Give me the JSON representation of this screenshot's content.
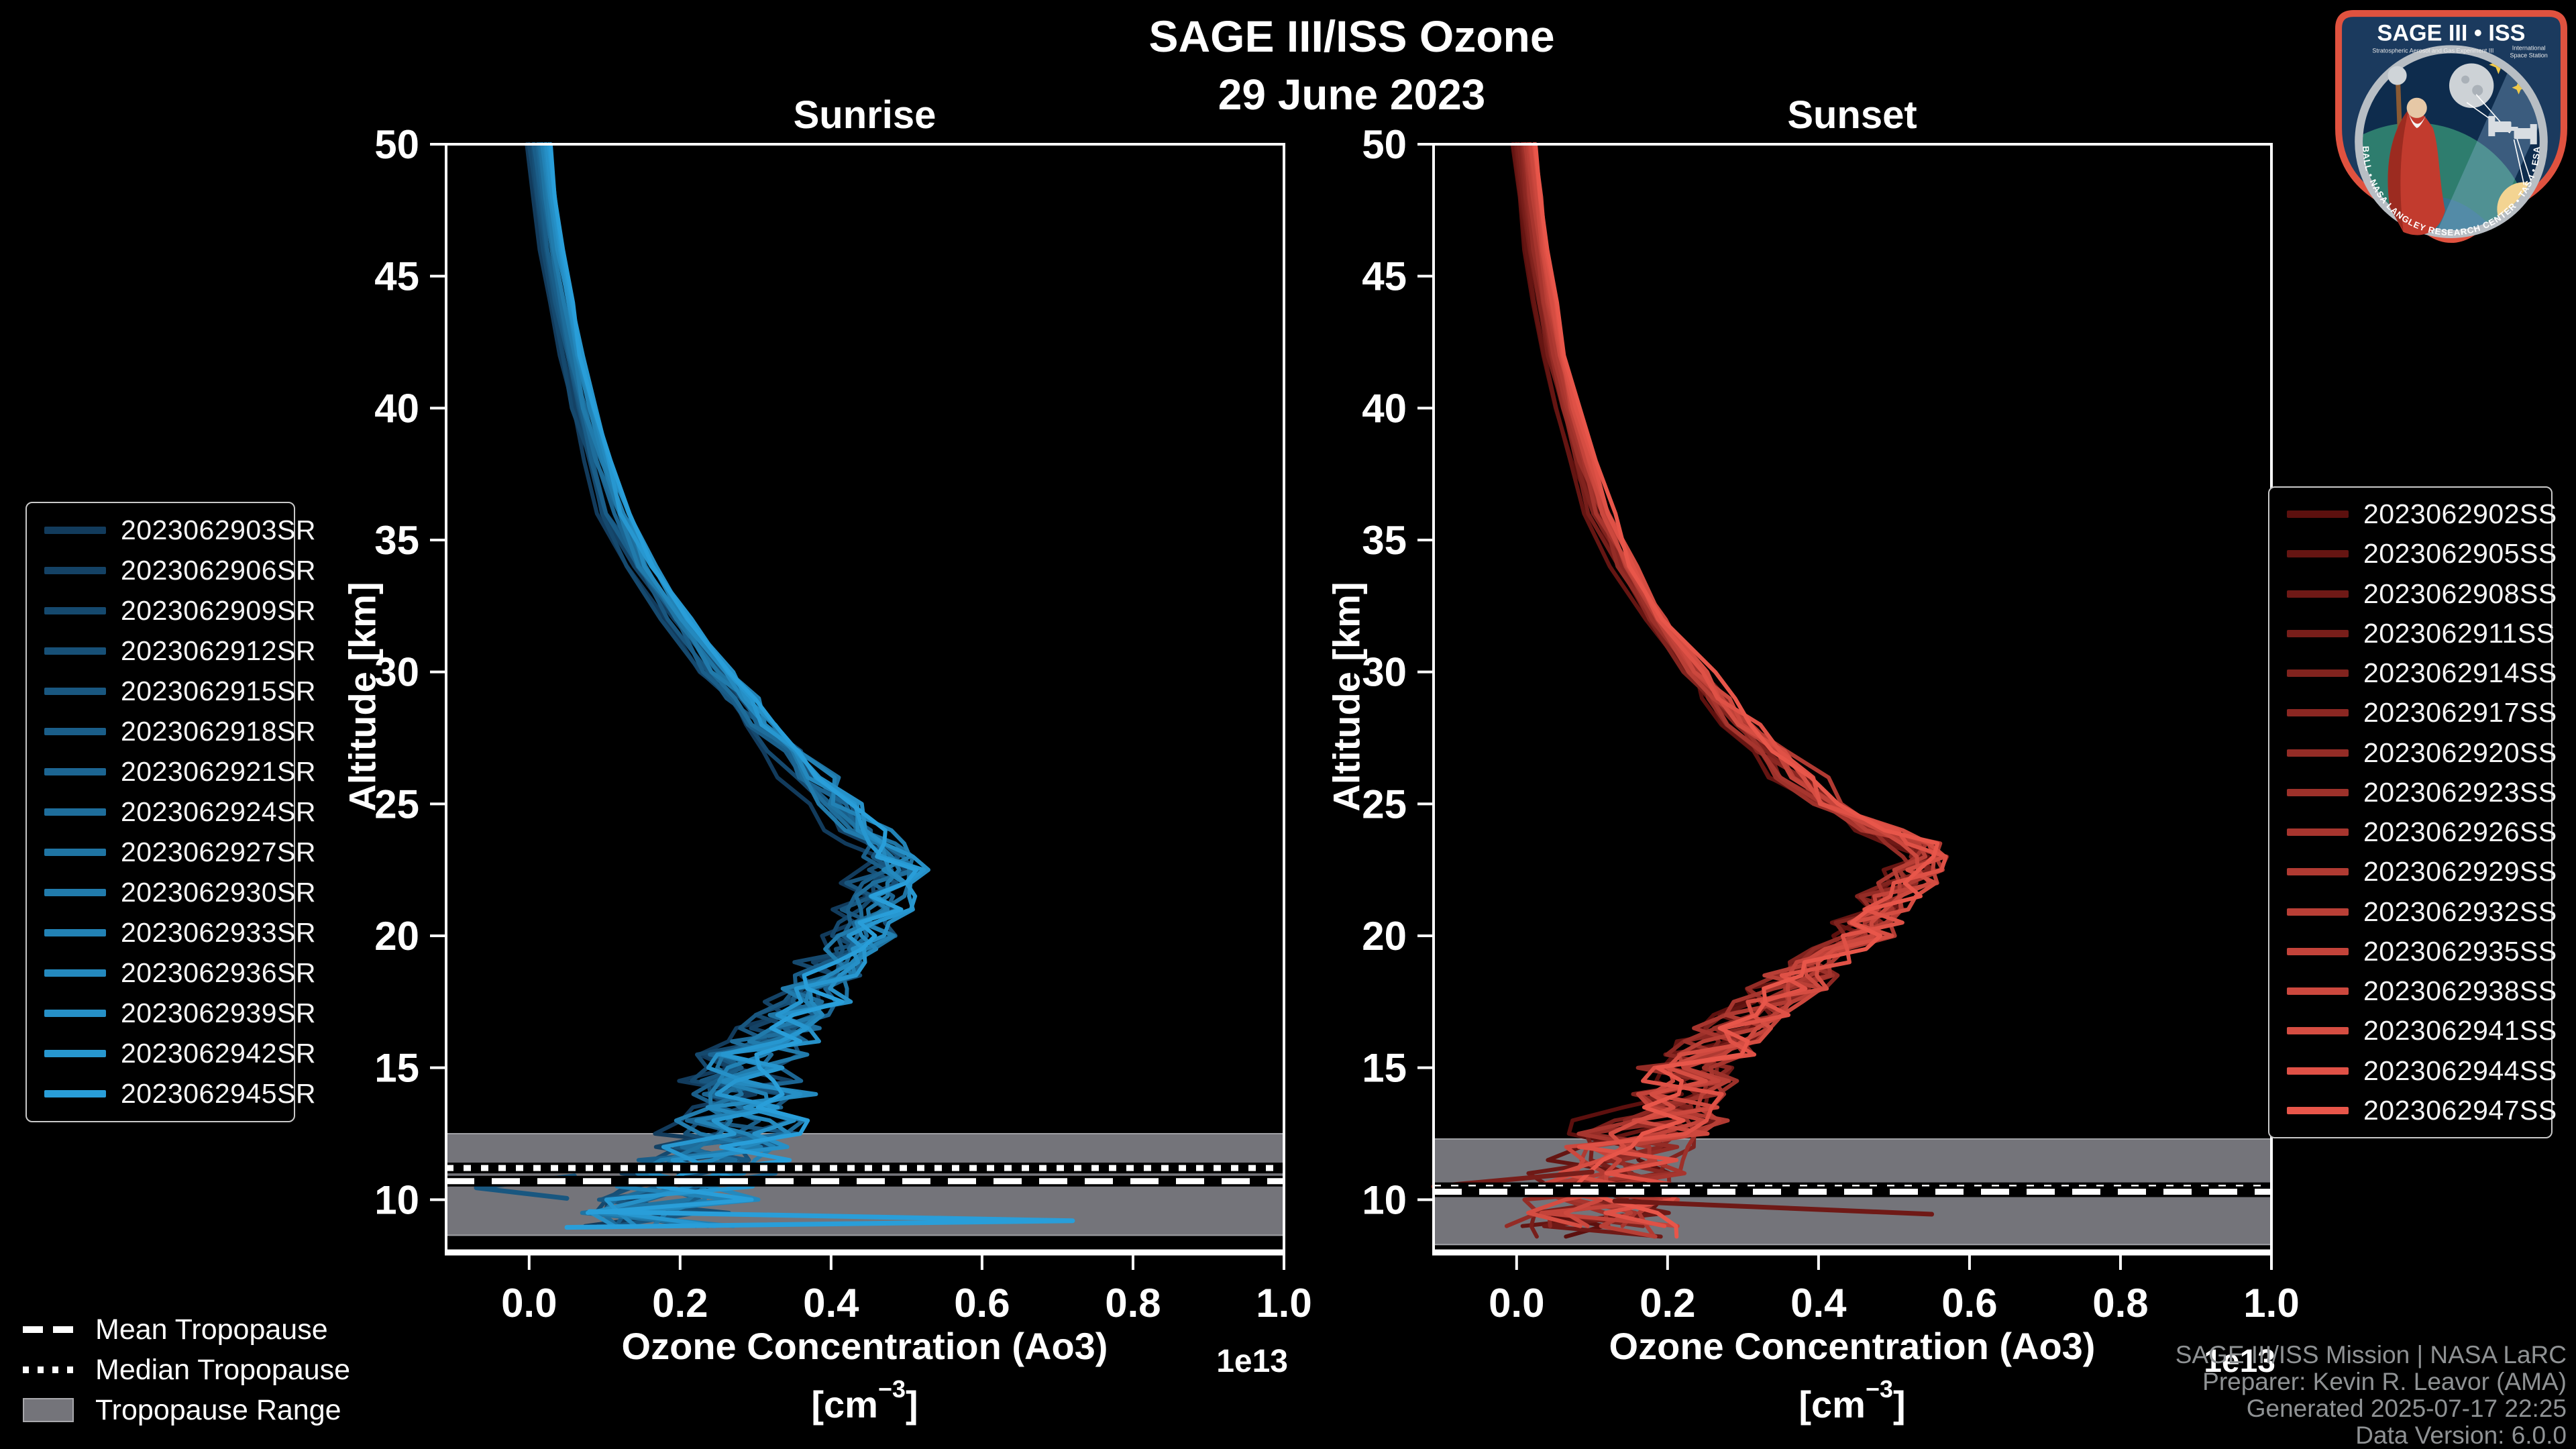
{
  "ui": {
    "title": "SAGE III/ISS Ozone",
    "date": "29 June 2023",
    "panel_titles": [
      "Sunrise",
      "Sunset"
    ],
    "xlabel": "Ozone Concentration (Ao3)",
    "xlabel_unit_open": "[cm",
    "xlabel_unit_exp": "−3",
    "xlabel_unit_close": "]",
    "ylabel": "Altitude [km]",
    "offset_text": "1e13",
    "trop_legend": {
      "mean": "Mean Tropopause",
      "median": "Median Tropopause",
      "range": "Tropopause Range"
    },
    "credits": [
      "SAGE III/ISS Mission | NASA LaRC",
      "Preparer: Kevin R. Leavor (AMA)",
      "Generated 2025-07-17 22:25",
      "Data Version: 6.0.0"
    ],
    "logo": {
      "title": "SAGE III • ISS",
      "sub_left": "Stratospheric Aerosol and Gas Experiment III",
      "sub_right1": "International",
      "sub_right2": "Space Station",
      "ring_text": "BALL • NASA LANGLEY RESEARCH CENTER • TAS-I • ESA"
    }
  },
  "chart_data": {
    "type": "line",
    "title": "SAGE III/ISS Ozone — 29 June 2023",
    "xlabel": "Ozone Concentration (Ao3) [cm^-3]",
    "ylabel": "Altitude [km]",
    "x_scale_factor": "1e13",
    "axes": {
      "xlim": [
        -0.11,
        1.0
      ],
      "ylim": [
        8,
        50
      ],
      "x_ticks": [
        0.0,
        0.2,
        0.4,
        0.6,
        0.8,
        1.0
      ],
      "x_tick_labels": [
        "0.0",
        "0.2",
        "0.4",
        "0.6",
        "0.8",
        "1.0"
      ],
      "y_ticks": [
        50,
        45,
        40,
        35,
        30,
        25,
        20,
        15,
        10
      ],
      "grid": false,
      "background": "#000000",
      "spine_color": "#ffffff"
    },
    "panels": [
      {
        "name": "Sunrise",
        "series_key": "sunrise",
        "legend_position": "left"
      },
      {
        "name": "Sunset",
        "series_key": "sunset",
        "legend_position": "right"
      }
    ],
    "profiles": {
      "altitudes_km": [
        50,
        48,
        46,
        44,
        42,
        40,
        38,
        36,
        34,
        32,
        30,
        29,
        28,
        27,
        26,
        25,
        24,
        23.5,
        23,
        22.5,
        22,
        21.5,
        21,
        20.5,
        20,
        19.5,
        19,
        18.5,
        18,
        17.5,
        17,
        16.5,
        16,
        15.5,
        15,
        14.5,
        14,
        13.5,
        13,
        12.5,
        12,
        11.5,
        11,
        10.5,
        10,
        9.5,
        9,
        8.6,
        8.3
      ],
      "sunrise_base_1e13": [
        0.012,
        0.02,
        0.03,
        0.043,
        0.056,
        0.072,
        0.092,
        0.115,
        0.15,
        0.195,
        0.25,
        0.28,
        0.31,
        0.345,
        0.375,
        0.4,
        0.44,
        0.46,
        0.475,
        0.48,
        0.47,
        0.465,
        0.46,
        0.45,
        0.445,
        0.425,
        0.4,
        0.39,
        0.38,
        0.365,
        0.35,
        0.34,
        0.32,
        0.3,
        0.285,
        0.295,
        0.3,
        0.295,
        0.285,
        0.275,
        0.26,
        0.24,
        0.22,
        0.2,
        0.185,
        0.17,
        0.155,
        0.145,
        0.14
      ],
      "sunset_base_1e13": [
        0.01,
        0.018,
        0.027,
        0.038,
        0.051,
        0.068,
        0.088,
        0.112,
        0.145,
        0.185,
        0.24,
        0.27,
        0.3,
        0.335,
        0.375,
        0.42,
        0.48,
        0.53,
        0.55,
        0.54,
        0.52,
        0.5,
        0.48,
        0.47,
        0.46,
        0.43,
        0.4,
        0.38,
        0.36,
        0.33,
        0.31,
        0.29,
        0.27,
        0.255,
        0.24,
        0.225,
        0.21,
        0.195,
        0.18,
        0.165,
        0.15,
        0.14,
        0.13,
        0.12,
        0.11,
        0.105,
        0.1,
        0.095,
        0.092
      ],
      "end_alt_min": [
        8.45,
        8.3
      ]
    },
    "jitter": {
      "breaks": [
        44,
        38,
        32,
        27,
        23,
        19,
        16,
        13.5,
        11.5
      ],
      "amps": [
        0.002,
        0.004,
        0.009,
        0.016,
        0.026,
        0.036,
        0.05,
        0.075,
        0.095,
        0.11
      ]
    },
    "series": {
      "sunrise": [
        {
          "label": "2023062903SR",
          "color": "#123b5c",
          "seed": 101
        },
        {
          "label": "2023062906SR",
          "color": "#144265",
          "seed": 102
        },
        {
          "label": "2023062909SR",
          "color": "#15496e",
          "seed": 103
        },
        {
          "label": "2023062912SR",
          "color": "#175077",
          "seed": 104
        },
        {
          "label": "2023062915SR",
          "color": "#195780",
          "seed": 105
        },
        {
          "label": "2023062918SR",
          "color": "#1a5e89",
          "seed": 106
        },
        {
          "label": "2023062921SR",
          "color": "#1c6592",
          "seed": 107
        },
        {
          "label": "2023062924SR",
          "color": "#1e6d9b",
          "seed": 108
        },
        {
          "label": "2023062927SR",
          "color": "#1f74a3",
          "seed": 109
        },
        {
          "label": "2023062930SR",
          "color": "#217bac",
          "seed": 110
        },
        {
          "label": "2023062933SR",
          "color": "#2282b5",
          "seed": 111
        },
        {
          "label": "2023062936SR",
          "color": "#2489be",
          "seed": 112
        },
        {
          "label": "2023062939SR",
          "color": "#2690c7",
          "seed": 113
        },
        {
          "label": "2023062942SR",
          "color": "#2797d0",
          "seed": 114
        },
        {
          "label": "2023062945SR",
          "color": "#299ed9",
          "seed": 115
        }
      ],
      "sunset": [
        {
          "label": "2023062902SS",
          "color": "#5c100e",
          "seed": 201
        },
        {
          "label": "2023062905SS",
          "color": "#651512",
          "seed": 202
        },
        {
          "label": "2023062908SS",
          "color": "#6f1916",
          "seed": 203
        },
        {
          "label": "2023062911SS",
          "color": "#781e1a",
          "seed": 204
        },
        {
          "label": "2023062914SS",
          "color": "#81231e",
          "seed": 205
        },
        {
          "label": "2023062917SS",
          "color": "#8b2722",
          "seed": 206
        },
        {
          "label": "2023062920SS",
          "color": "#942c26",
          "seed": 207
        },
        {
          "label": "2023062923SS",
          "color": "#9d312a",
          "seed": 208
        },
        {
          "label": "2023062926SS",
          "color": "#a7352e",
          "seed": 209
        },
        {
          "label": "2023062929SS",
          "color": "#b03a32",
          "seed": 210
        },
        {
          "label": "2023062932SS",
          "color": "#b93f36",
          "seed": 211
        },
        {
          "label": "2023062935SS",
          "color": "#c3433a",
          "seed": 212
        },
        {
          "label": "2023062938SS",
          "color": "#cc483e",
          "seed": 213
        },
        {
          "label": "2023062941SS",
          "color": "#d54d42",
          "seed": 214
        },
        {
          "label": "2023062944SS",
          "color": "#df5146",
          "seed": 215
        },
        {
          "label": "2023062947SS",
          "color": "#e8564a",
          "seed": 216
        }
      ]
    },
    "outliers": [
      {
        "panel": 0,
        "color": "#299ed9",
        "points": [
          [
            0.08,
            9.55
          ],
          [
            0.72,
            9.2
          ],
          [
            0.05,
            8.95
          ]
        ]
      },
      {
        "panel": 0,
        "color": "#195780",
        "points": [
          [
            0.06,
            10.9
          ],
          [
            -0.07,
            10.45
          ],
          [
            0.05,
            10.05
          ]
        ]
      },
      {
        "panel": 1,
        "color": "#6f1916",
        "points": [
          [
            0.13,
            9.95
          ],
          [
            0.55,
            9.45
          ]
        ]
      },
      {
        "panel": 1,
        "color": "#781e1a",
        "points": [
          [
            0.1,
            11.05
          ],
          [
            -0.11,
            10.5
          ]
        ]
      }
    ],
    "tropopause": {
      "band_color": "#74747a",
      "band_edge_color": "#9fa0a4",
      "line_color": "#ffffff",
      "sunrise": {
        "range_top_km": 12.5,
        "range_bottom_km": 8.65,
        "median_km": 11.2,
        "mean_km": 10.7
      },
      "sunset": {
        "range_top_km": 12.3,
        "range_bottom_km": 8.3,
        "median_km": 10.45,
        "mean_km": 10.3
      }
    }
  }
}
